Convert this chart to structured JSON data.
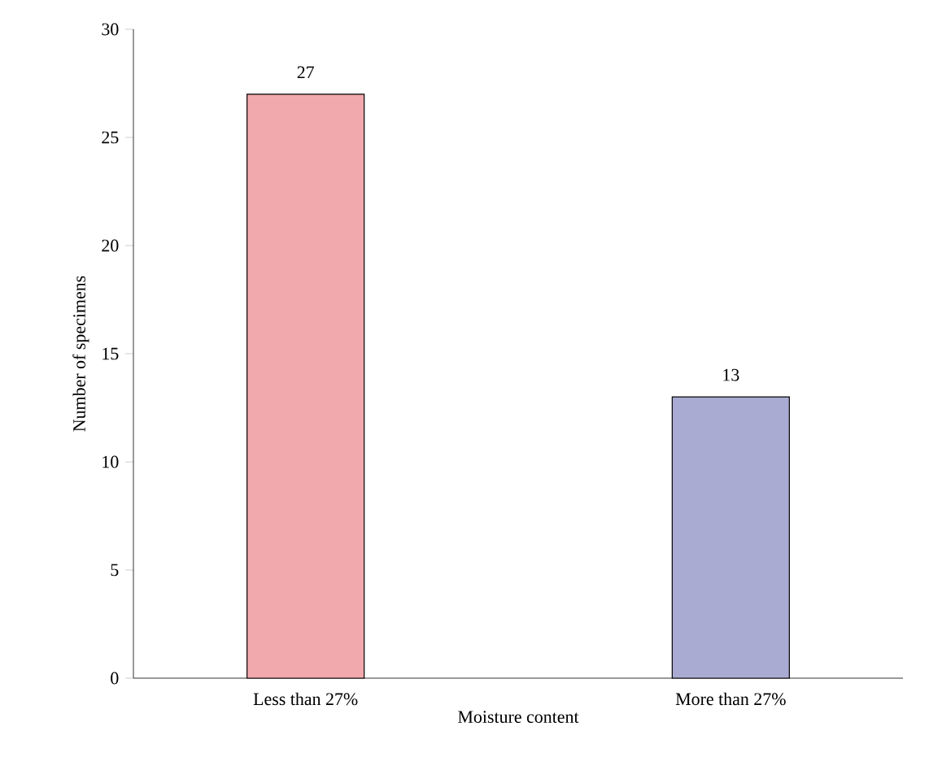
{
  "chart_data": {
    "type": "bar",
    "xlabel": "Moisture content",
    "ylabel": "Number of specimens",
    "categories": [
      "Less than 27%",
      "More than 27%"
    ],
    "values": [
      27,
      13
    ],
    "colors": [
      "#f2a9ad",
      "#a9abd2"
    ],
    "ylim": [
      0,
      30
    ],
    "yticks": [
      0,
      5,
      10,
      15,
      20,
      25,
      30
    ],
    "data_labels": true,
    "grid": false
  }
}
